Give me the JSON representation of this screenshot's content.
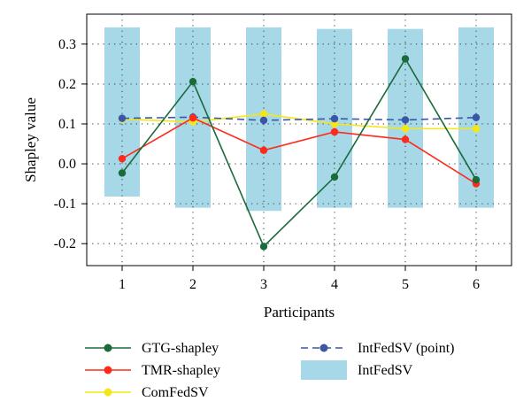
{
  "chart_data": {
    "type": "line",
    "title": "",
    "xlabel": "Participants",
    "ylabel": "Shapley value",
    "categories": [
      "1",
      "2",
      "3",
      "4",
      "5",
      "6"
    ],
    "y_ticks": [
      "-0.2",
      "-0.1",
      "0.0",
      "0.1",
      "0.2",
      "0.3"
    ],
    "ylim": [
      -0.255,
      0.375
    ],
    "grid": true,
    "legend_position": "bottom",
    "series": [
      {
        "name": "GTG-shapley",
        "kind": "line",
        "color": "#1a6b3a",
        "values": [
          -0.023,
          0.206,
          -0.207,
          -0.033,
          0.263,
          -0.04
        ]
      },
      {
        "name": "TMR-shapley",
        "kind": "line",
        "color": "#ff2a1a",
        "values": [
          0.013,
          0.115,
          0.034,
          0.08,
          0.061,
          -0.05
        ]
      },
      {
        "name": "ComFedSV",
        "kind": "line",
        "color": "#f5e61a",
        "values": [
          0.112,
          0.105,
          0.125,
          0.1,
          0.088,
          0.088
        ]
      },
      {
        "name": "IntFedSV (point)",
        "kind": "dashed",
        "color": "#3b56a6",
        "values": [
          0.114,
          0.117,
          0.109,
          0.113,
          0.11,
          0.116
        ]
      },
      {
        "name": "IntFedSV",
        "kind": "range",
        "color": "#a6d8e8",
        "lower": [
          -0.082,
          -0.11,
          -0.118,
          -0.11,
          -0.11,
          -0.11
        ],
        "upper": [
          0.342,
          0.342,
          0.342,
          0.338,
          0.338,
          0.342
        ]
      }
    ]
  }
}
